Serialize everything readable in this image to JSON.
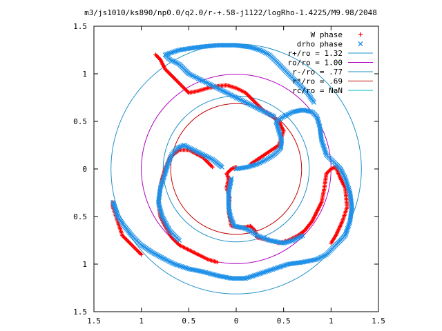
{
  "chart_data": {
    "type": "scatter",
    "title": "m3/js1010/ks890/np0.0/q2.0/r-+.58-j1122/logRho-1.4225/M9.98/2048",
    "xlim": [
      -1.5,
      1.5
    ],
    "ylim": [
      -1.5,
      1.5
    ],
    "x_tick_values": [
      -1.5,
      -1,
      -0.5,
      0,
      0.5,
      1,
      1.5
    ],
    "x_tick_labels": [
      "1.5",
      "1",
      "0.5",
      "0",
      "0.5",
      "1",
      "1.5"
    ],
    "y_tick_values": [
      1.5,
      1,
      0.5,
      0,
      -0.5,
      -1,
      -1.5
    ],
    "y_tick_labels": [
      "1.5",
      "1",
      "0.5",
      "0",
      "0.5",
      "1",
      "1.5"
    ],
    "grid": false,
    "legend_position": "top-right",
    "circles": [
      {
        "label": "r+/ro = 1.32",
        "radius": 1.32,
        "color": "#1e90c8"
      },
      {
        "label": "ro/ro = 1.00",
        "radius": 1.0,
        "color": "#b000c0"
      },
      {
        "label": "r-/ro = .77",
        "radius": 0.77,
        "color": "#1e90c8"
      },
      {
        "label": "r*/ro = .69",
        "radius": 0.69,
        "color": "#c00000"
      },
      {
        "label": "rc/ro = NaN",
        "radius": null,
        "color": "#00c0c0"
      }
    ],
    "series": [
      {
        "name": "W phase",
        "marker": "+",
        "color": "#ff0000",
        "curve": [
          [
            0.0,
            0.02
          ],
          [
            -0.05,
            0.0
          ],
          [
            -0.1,
            -0.05
          ],
          [
            -0.08,
            -0.1
          ],
          [
            -0.1,
            -0.2
          ],
          [
            -0.07,
            -0.3
          ],
          [
            -0.08,
            -0.45
          ],
          [
            -0.05,
            -0.6
          ],
          [
            0.05,
            -0.62
          ],
          [
            0.15,
            -0.6
          ],
          [
            0.2,
            -0.65
          ],
          [
            0.22,
            -0.72
          ],
          [
            0.35,
            -0.75
          ],
          [
            0.45,
            -0.78
          ],
          [
            0.55,
            -0.75
          ],
          [
            0.65,
            -0.7
          ],
          [
            0.72,
            -0.65
          ],
          [
            0.8,
            -0.55
          ],
          [
            0.85,
            -0.45
          ],
          [
            0.9,
            -0.35
          ],
          [
            0.93,
            -0.2
          ],
          [
            0.95,
            -0.05
          ],
          [
            1.0,
            0.0
          ],
          [
            1.05,
            0.02
          ],
          [
            1.1,
            -0.1
          ],
          [
            1.15,
            -0.2
          ],
          [
            1.17,
            -0.4
          ],
          [
            1.12,
            -0.55
          ],
          [
            1.05,
            -0.7
          ],
          [
            1.0,
            -0.78
          ],
          [
            -0.25,
            0.02
          ],
          [
            -0.35,
            0.12
          ],
          [
            -0.5,
            0.2
          ],
          [
            -0.6,
            0.2
          ],
          [
            -0.7,
            0.12
          ],
          [
            -0.75,
            0.0
          ],
          [
            -0.78,
            -0.1
          ],
          [
            -0.8,
            -0.2
          ],
          [
            -0.82,
            -0.35
          ],
          [
            -0.8,
            -0.5
          ],
          [
            -0.75,
            -0.6
          ],
          [
            -0.68,
            -0.72
          ],
          [
            -0.6,
            -0.8
          ],
          [
            -0.5,
            -0.85
          ],
          [
            -0.4,
            -0.9
          ],
          [
            -0.3,
            -0.95
          ],
          [
            -0.2,
            -0.98
          ],
          [
            0.15,
            0.05
          ],
          [
            0.3,
            0.15
          ],
          [
            0.45,
            0.25
          ],
          [
            0.5,
            0.4
          ],
          [
            0.45,
            0.5
          ],
          [
            0.38,
            0.55
          ],
          [
            0.3,
            0.6
          ],
          [
            0.2,
            0.7
          ],
          [
            0.1,
            0.8
          ],
          [
            0.0,
            0.85
          ],
          [
            -0.1,
            0.88
          ],
          [
            -0.2,
            0.87
          ],
          [
            -0.3,
            0.85
          ],
          [
            -0.4,
            0.82
          ],
          [
            -0.5,
            0.8
          ],
          [
            -0.55,
            0.85
          ],
          [
            -0.65,
            0.95
          ],
          [
            -0.75,
            1.05
          ],
          [
            -0.8,
            1.15
          ],
          [
            -0.85,
            1.2
          ],
          [
            -1.0,
            -0.9
          ],
          [
            -1.1,
            -0.8
          ],
          [
            -1.2,
            -0.7
          ],
          [
            -1.25,
            -0.55
          ],
          [
            -1.3,
            -0.4
          ],
          [
            -1.3,
            -0.35
          ]
        ]
      },
      {
        "name": "drho phase",
        "marker": "x",
        "color": "#1e90e8",
        "curve": [
          [
            0.0,
            0.0
          ],
          [
            0.12,
            0.02
          ],
          [
            0.22,
            0.05
          ],
          [
            0.32,
            0.1
          ],
          [
            0.4,
            0.15
          ],
          [
            0.47,
            0.22
          ],
          [
            0.48,
            0.3
          ],
          [
            0.45,
            0.4
          ],
          [
            0.42,
            0.5
          ],
          [
            0.5,
            0.55
          ],
          [
            0.6,
            0.6
          ],
          [
            0.7,
            0.62
          ],
          [
            0.8,
            0.6
          ],
          [
            0.85,
            0.55
          ],
          [
            0.88,
            0.45
          ],
          [
            0.9,
            0.3
          ],
          [
            0.95,
            0.15
          ],
          [
            1.05,
            0.05
          ],
          [
            1.1,
            0.0
          ],
          [
            1.15,
            -0.1
          ],
          [
            1.2,
            -0.25
          ],
          [
            1.22,
            -0.4
          ],
          [
            1.2,
            -0.55
          ],
          [
            1.15,
            -0.7
          ],
          [
            1.05,
            -0.8
          ],
          [
            0.95,
            -0.9
          ],
          [
            0.85,
            -0.95
          ],
          [
            0.7,
            -0.98
          ],
          [
            0.55,
            -1.0
          ],
          [
            0.4,
            -1.05
          ],
          [
            0.25,
            -1.1
          ],
          [
            0.1,
            -1.15
          ],
          [
            -0.05,
            -1.15
          ],
          [
            -0.2,
            -1.12
          ],
          [
            -0.35,
            -1.08
          ],
          [
            -0.5,
            -1.05
          ],
          [
            -0.65,
            -1.0
          ],
          [
            -0.75,
            -0.95
          ],
          [
            -0.88,
            -0.88
          ],
          [
            -1.0,
            -0.8
          ],
          [
            -1.1,
            -0.7
          ],
          [
            -1.18,
            -0.6
          ],
          [
            -1.25,
            -0.5
          ],
          [
            -1.28,
            -0.4
          ],
          [
            -1.3,
            -0.35
          ],
          [
            -0.05,
            -0.1
          ],
          [
            -0.08,
            -0.25
          ],
          [
            -0.08,
            -0.4
          ],
          [
            -0.06,
            -0.5
          ],
          [
            -0.02,
            -0.6
          ],
          [
            0.08,
            -0.62
          ],
          [
            0.15,
            -0.65
          ],
          [
            0.22,
            -0.7
          ],
          [
            0.35,
            -0.75
          ],
          [
            0.5,
            -0.78
          ],
          [
            0.6,
            -0.75
          ],
          [
            0.7,
            -0.7
          ],
          [
            -0.15,
            0.02
          ],
          [
            -0.25,
            0.1
          ],
          [
            -0.35,
            0.15
          ],
          [
            -0.45,
            0.2
          ],
          [
            -0.55,
            0.25
          ],
          [
            -0.62,
            0.22
          ],
          [
            -0.68,
            0.15
          ],
          [
            -0.72,
            0.05
          ],
          [
            -0.75,
            -0.05
          ],
          [
            -0.8,
            -0.2
          ],
          [
            -0.82,
            -0.35
          ],
          [
            -0.78,
            -0.5
          ],
          [
            -0.7,
            -0.65
          ],
          [
            -0.6,
            -0.75
          ],
          [
            0.4,
            0.55
          ],
          [
            0.3,
            0.6
          ],
          [
            0.2,
            0.65
          ],
          [
            0.1,
            0.7
          ],
          [
            0.0,
            0.75
          ],
          [
            -0.1,
            0.8
          ],
          [
            -0.2,
            0.85
          ],
          [
            -0.3,
            0.9
          ],
          [
            -0.4,
            0.95
          ],
          [
            -0.5,
            1.0
          ],
          [
            -0.55,
            1.05
          ],
          [
            -0.6,
            1.1
          ],
          [
            -0.7,
            1.15
          ],
          [
            -0.75,
            1.2
          ],
          [
            -0.6,
            1.25
          ],
          [
            -0.4,
            1.28
          ],
          [
            -0.2,
            1.3
          ],
          [
            0.0,
            1.3
          ],
          [
            0.15,
            1.28
          ],
          [
            0.25,
            1.25
          ],
          [
            0.35,
            1.2
          ],
          [
            0.45,
            1.1
          ],
          [
            0.55,
            1.0
          ],
          [
            0.65,
            0.9
          ],
          [
            0.75,
            0.8
          ],
          [
            0.82,
            0.7
          ]
        ]
      }
    ]
  }
}
